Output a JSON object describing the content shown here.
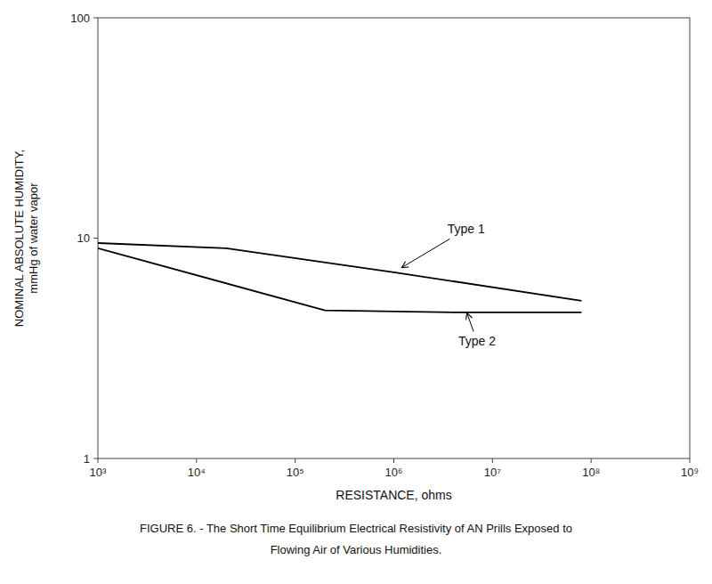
{
  "chart_data": {
    "type": "line",
    "log": true,
    "grid": false,
    "xlabel": "RESISTANCE, ohms",
    "ylabel": "NOMINAL ABSOLUTE HUMIDITY,\nmmHg of water vapor",
    "caption": [
      "FIGURE 6. - The Short Time Equilibrium Electrical Resistivity of AN Prills Exposed to",
      "Flowing Air of Various Humidities."
    ],
    "xlim": [
      1000,
      1000000000
    ],
    "ylim": [
      1,
      100
    ],
    "xticks": [
      {
        "value": 1000,
        "label": "10³"
      },
      {
        "value": 10000,
        "label": "10⁴"
      },
      {
        "value": 100000,
        "label": "10⁵"
      },
      {
        "value": 1000000,
        "label": "10⁶"
      },
      {
        "value": 10000000,
        "label": "10⁷"
      },
      {
        "value": 100000000,
        "label": "10⁸"
      },
      {
        "value": 1000000000,
        "label": "10⁹"
      }
    ],
    "yticks": [
      1,
      10,
      100
    ],
    "series": [
      {
        "x": [
          1000,
          20000,
          1000000,
          80000000
        ],
        "values": [
          9.5,
          9.0,
          7.0,
          5.2
        ],
        "color": "#000000"
      },
      {
        "x": [
          1000,
          200000,
          5000000,
          80000000
        ],
        "values": [
          9.0,
          4.7,
          4.6,
          4.6
        ],
        "color": "#000000"
      }
    ],
    "annotations": [
      {
        "text": "Type 1",
        "x": 3500000,
        "y": 11.0,
        "arrow_x": 1200000,
        "arrow_y": 7.35
      },
      {
        "text": "Type 2",
        "x": 4500000,
        "y": 3.4,
        "arrow_x": 5500000,
        "arrow_y": 4.58
      }
    ]
  }
}
